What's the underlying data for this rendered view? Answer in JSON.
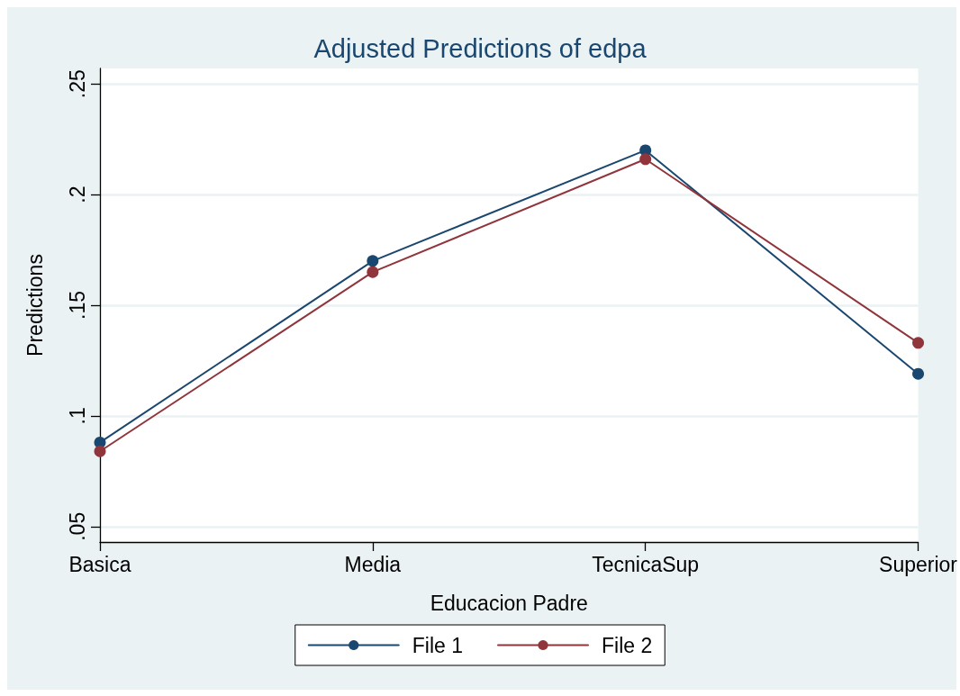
{
  "chart_data": {
    "type": "line",
    "title": "Adjusted Predictions of edpa",
    "xlabel": "Educacion Padre",
    "ylabel": "Predictions",
    "categories": [
      "Basica",
      "Media",
      "TecnicaSup",
      "Superior"
    ],
    "series": [
      {
        "name": "File 1",
        "color": "#1a476f",
        "values": [
          0.088,
          0.17,
          0.22,
          0.119
        ]
      },
      {
        "name": "File 2",
        "color": "#90353b",
        "values": [
          0.084,
          0.165,
          0.216,
          0.133
        ]
      }
    ],
    "ylim": [
      0.043,
      0.257
    ],
    "yticks": [
      {
        "value": 0.05,
        "label": ".05"
      },
      {
        "value": 0.1,
        "label": ".1"
      },
      {
        "value": 0.15,
        "label": ".15"
      },
      {
        "value": 0.2,
        "label": ".2"
      },
      {
        "value": 0.25,
        "label": ".25"
      }
    ],
    "grid": "y",
    "legend": "bottom",
    "marker": "circle",
    "line_style": "solid"
  }
}
